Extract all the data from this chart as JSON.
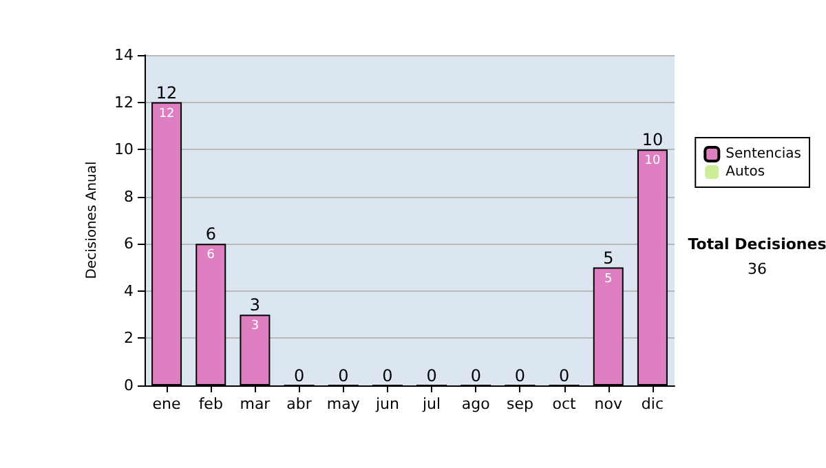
{
  "chart_data": {
    "type": "bar",
    "ylabel": "Decisiones Anual",
    "categories": [
      "ene",
      "feb",
      "mar",
      "abr",
      "may",
      "jun",
      "jul",
      "ago",
      "sep",
      "oct",
      "nov",
      "dic"
    ],
    "series": [
      {
        "name": "Sentencias",
        "color": "#dd7fc0",
        "values": [
          12,
          6,
          3,
          0,
          0,
          0,
          0,
          0,
          0,
          0,
          5,
          10
        ],
        "value_labels": [
          "12",
          "6",
          "3",
          null,
          null,
          null,
          null,
          null,
          null,
          null,
          "5",
          "10"
        ]
      },
      {
        "name": "Autos",
        "color": "#ccee99",
        "values": [
          0,
          0,
          0,
          0,
          0,
          0,
          0,
          0,
          0,
          0,
          0,
          0
        ]
      }
    ],
    "stacked": true,
    "totals": [
      "12",
      "6",
      "3",
      "0",
      "0",
      "0",
      "0",
      "0",
      "0",
      "0",
      "5",
      "10"
    ],
    "ylim": [
      0,
      14
    ],
    "yticks": [
      0,
      2,
      4,
      6,
      8,
      10,
      12,
      14
    ],
    "grid": "y",
    "legend": "right",
    "annotations": [
      "Total Decisiones",
      "36"
    ]
  }
}
